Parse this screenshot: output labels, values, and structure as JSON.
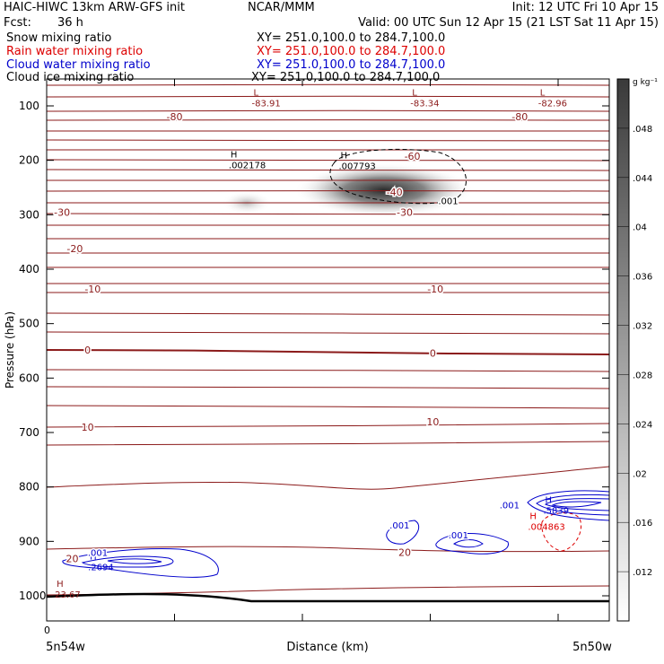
{
  "header": {
    "model": "HAIC-HIWC 13km ARW-GFS init",
    "org": "NCAR/MMM",
    "init": "Init: 12 UTC Fri 10 Apr 15",
    "fcst_label": "Fcst:",
    "fcst_value": "36 h",
    "valid": "Valid: 00 UTC Sun 12 Apr 15 (21 LST Sat 11 Apr 15)"
  },
  "fields": [
    {
      "name": "Snow mixing ratio",
      "xy": "XY= 251.0,100.0 to 284.7,100.0",
      "color": "#000000"
    },
    {
      "name": "Rain water mixing ratio",
      "xy": "XY= 251.0,100.0 to 284.7,100.0",
      "color": "#dd0000"
    },
    {
      "name": "Cloud water mixing ratio",
      "xy": "XY= 251.0,100.0 to 284.7,100.0",
      "color": "#0000cc"
    },
    {
      "name": "Cloud ice mixing ratio",
      "xy": "XY= 251.0,100.0 to 284.7,100.0",
      "color": "#000000"
    }
  ],
  "chart_data": {
    "type": "heatmap",
    "title": "",
    "xlabel": "Distance (km)",
    "ylabel": "Pressure (hPa)",
    "xlim": [
      0,
      2200
    ],
    "ylim": [
      1060,
      50
    ],
    "x_ticks": [
      0,
      500,
      1000,
      1500,
      2000
    ],
    "x_tick_labels": [
      "0",
      "",
      "",
      "",
      ""
    ],
    "y_ticks": [
      100,
      200,
      300,
      400,
      500,
      600,
      700,
      800,
      900,
      1000
    ],
    "x_end_labels": {
      "left": "5n54w",
      "right": "5n50w"
    },
    "colorbar": {
      "unit": "g kg⁻¹",
      "ticks": [
        ".048",
        ".044",
        ".04",
        ".036",
        ".032",
        ".028",
        ".024",
        ".02",
        ".016",
        ".012"
      ],
      "tick_values": [
        0.048,
        0.044,
        0.04,
        0.036,
        0.032,
        0.028,
        0.024,
        0.02,
        0.016,
        0.012
      ],
      "range": [
        0.008,
        0.052
      ]
    },
    "temperature_contours": {
      "color": "#8b1a1a",
      "levels": [
        -80,
        -70,
        -60,
        -50,
        -40,
        -30,
        -20,
        -10,
        0,
        10,
        20
      ],
      "labels": [
        {
          "text": "-80",
          "x": 500,
          "p": 120
        },
        {
          "text": "-80",
          "x": 1850,
          "p": 120
        },
        {
          "text": "-60",
          "x": 1430,
          "p": 192
        },
        {
          "text": "-40",
          "x": 1360,
          "p": 258
        },
        {
          "text": "-30",
          "x": 60,
          "p": 295
        },
        {
          "text": "-30",
          "x": 1400,
          "p": 295
        },
        {
          "text": "-20",
          "x": 110,
          "p": 362
        },
        {
          "text": "-10",
          "x": 180,
          "p": 436
        },
        {
          "text": "-10",
          "x": 1520,
          "p": 436
        },
        {
          "text": "0",
          "x": 160,
          "p": 548
        },
        {
          "text": "0",
          "x": 1510,
          "p": 554
        },
        {
          "text": "10",
          "x": 160,
          "p": 690
        },
        {
          "text": "10",
          "x": 1510,
          "p": 680
        },
        {
          "text": "20",
          "x": 100,
          "p": 932
        },
        {
          "text": "20",
          "x": 1400,
          "p": 920
        }
      ]
    },
    "extrema": [
      {
        "kind": "L",
        "value": "-83.91",
        "x": 830,
        "p": 88
      },
      {
        "kind": "L",
        "value": "-83.34",
        "x": 1450,
        "p": 88
      },
      {
        "kind": "L",
        "value": "-82.96",
        "x": 1950,
        "p": 88
      },
      {
        "kind": "H",
        "value": ".002178",
        "x": 740,
        "p": 201
      },
      {
        "kind": "H",
        "value": ".007793",
        "x": 1170,
        "p": 203
      },
      {
        "kind": "H",
        "value": ".2694",
        "x": 190,
        "p": 940
      },
      {
        "kind": "H",
        "value": ".5839",
        "x": 1970,
        "p": 836
      },
      {
        "kind": "H",
        "value": ".004863",
        "x": 1910,
        "p": 866
      },
      {
        "kind": "H",
        "value": "23.67",
        "x": 60,
        "p": 990
      }
    ],
    "cloud_water_labels": [
      {
        "text": ".001",
        "x": 200,
        "p": 920
      },
      {
        "text": ".001",
        "x": 1380,
        "p": 870
      },
      {
        "text": ".001",
        "x": 1610,
        "p": 888
      },
      {
        "text": ".001",
        "x": 1810,
        "p": 833
      }
    ],
    "ice_label": {
      "text": ".001",
      "x": 1570,
      "p": 274
    },
    "snow_maxima": [
      {
        "x": 1200,
        "p": 255,
        "value": 0.048
      },
      {
        "x": 700,
        "p": 275,
        "value": 0.016
      }
    ]
  }
}
